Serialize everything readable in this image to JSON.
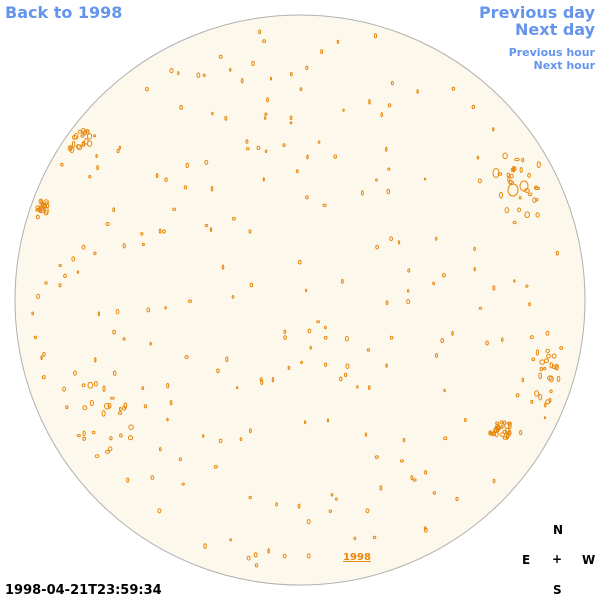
{
  "nav": {
    "back": "Back to 1998",
    "previous_day": "Previous day",
    "next_day": "Next day",
    "previous_hour": "Previous hour",
    "next_hour": "Next hour"
  },
  "disk": {
    "year_label": "1998"
  },
  "timestamp": "1998-04-21T23:59:34",
  "compass": {
    "north": "N",
    "east": "E",
    "center": "+",
    "west": "W",
    "south": "S"
  },
  "colors": {
    "disk_fill": "#fdf8ec",
    "disk_edge": "#b0b0b0",
    "feature": "#e8870b",
    "link": "#6495ed"
  }
}
